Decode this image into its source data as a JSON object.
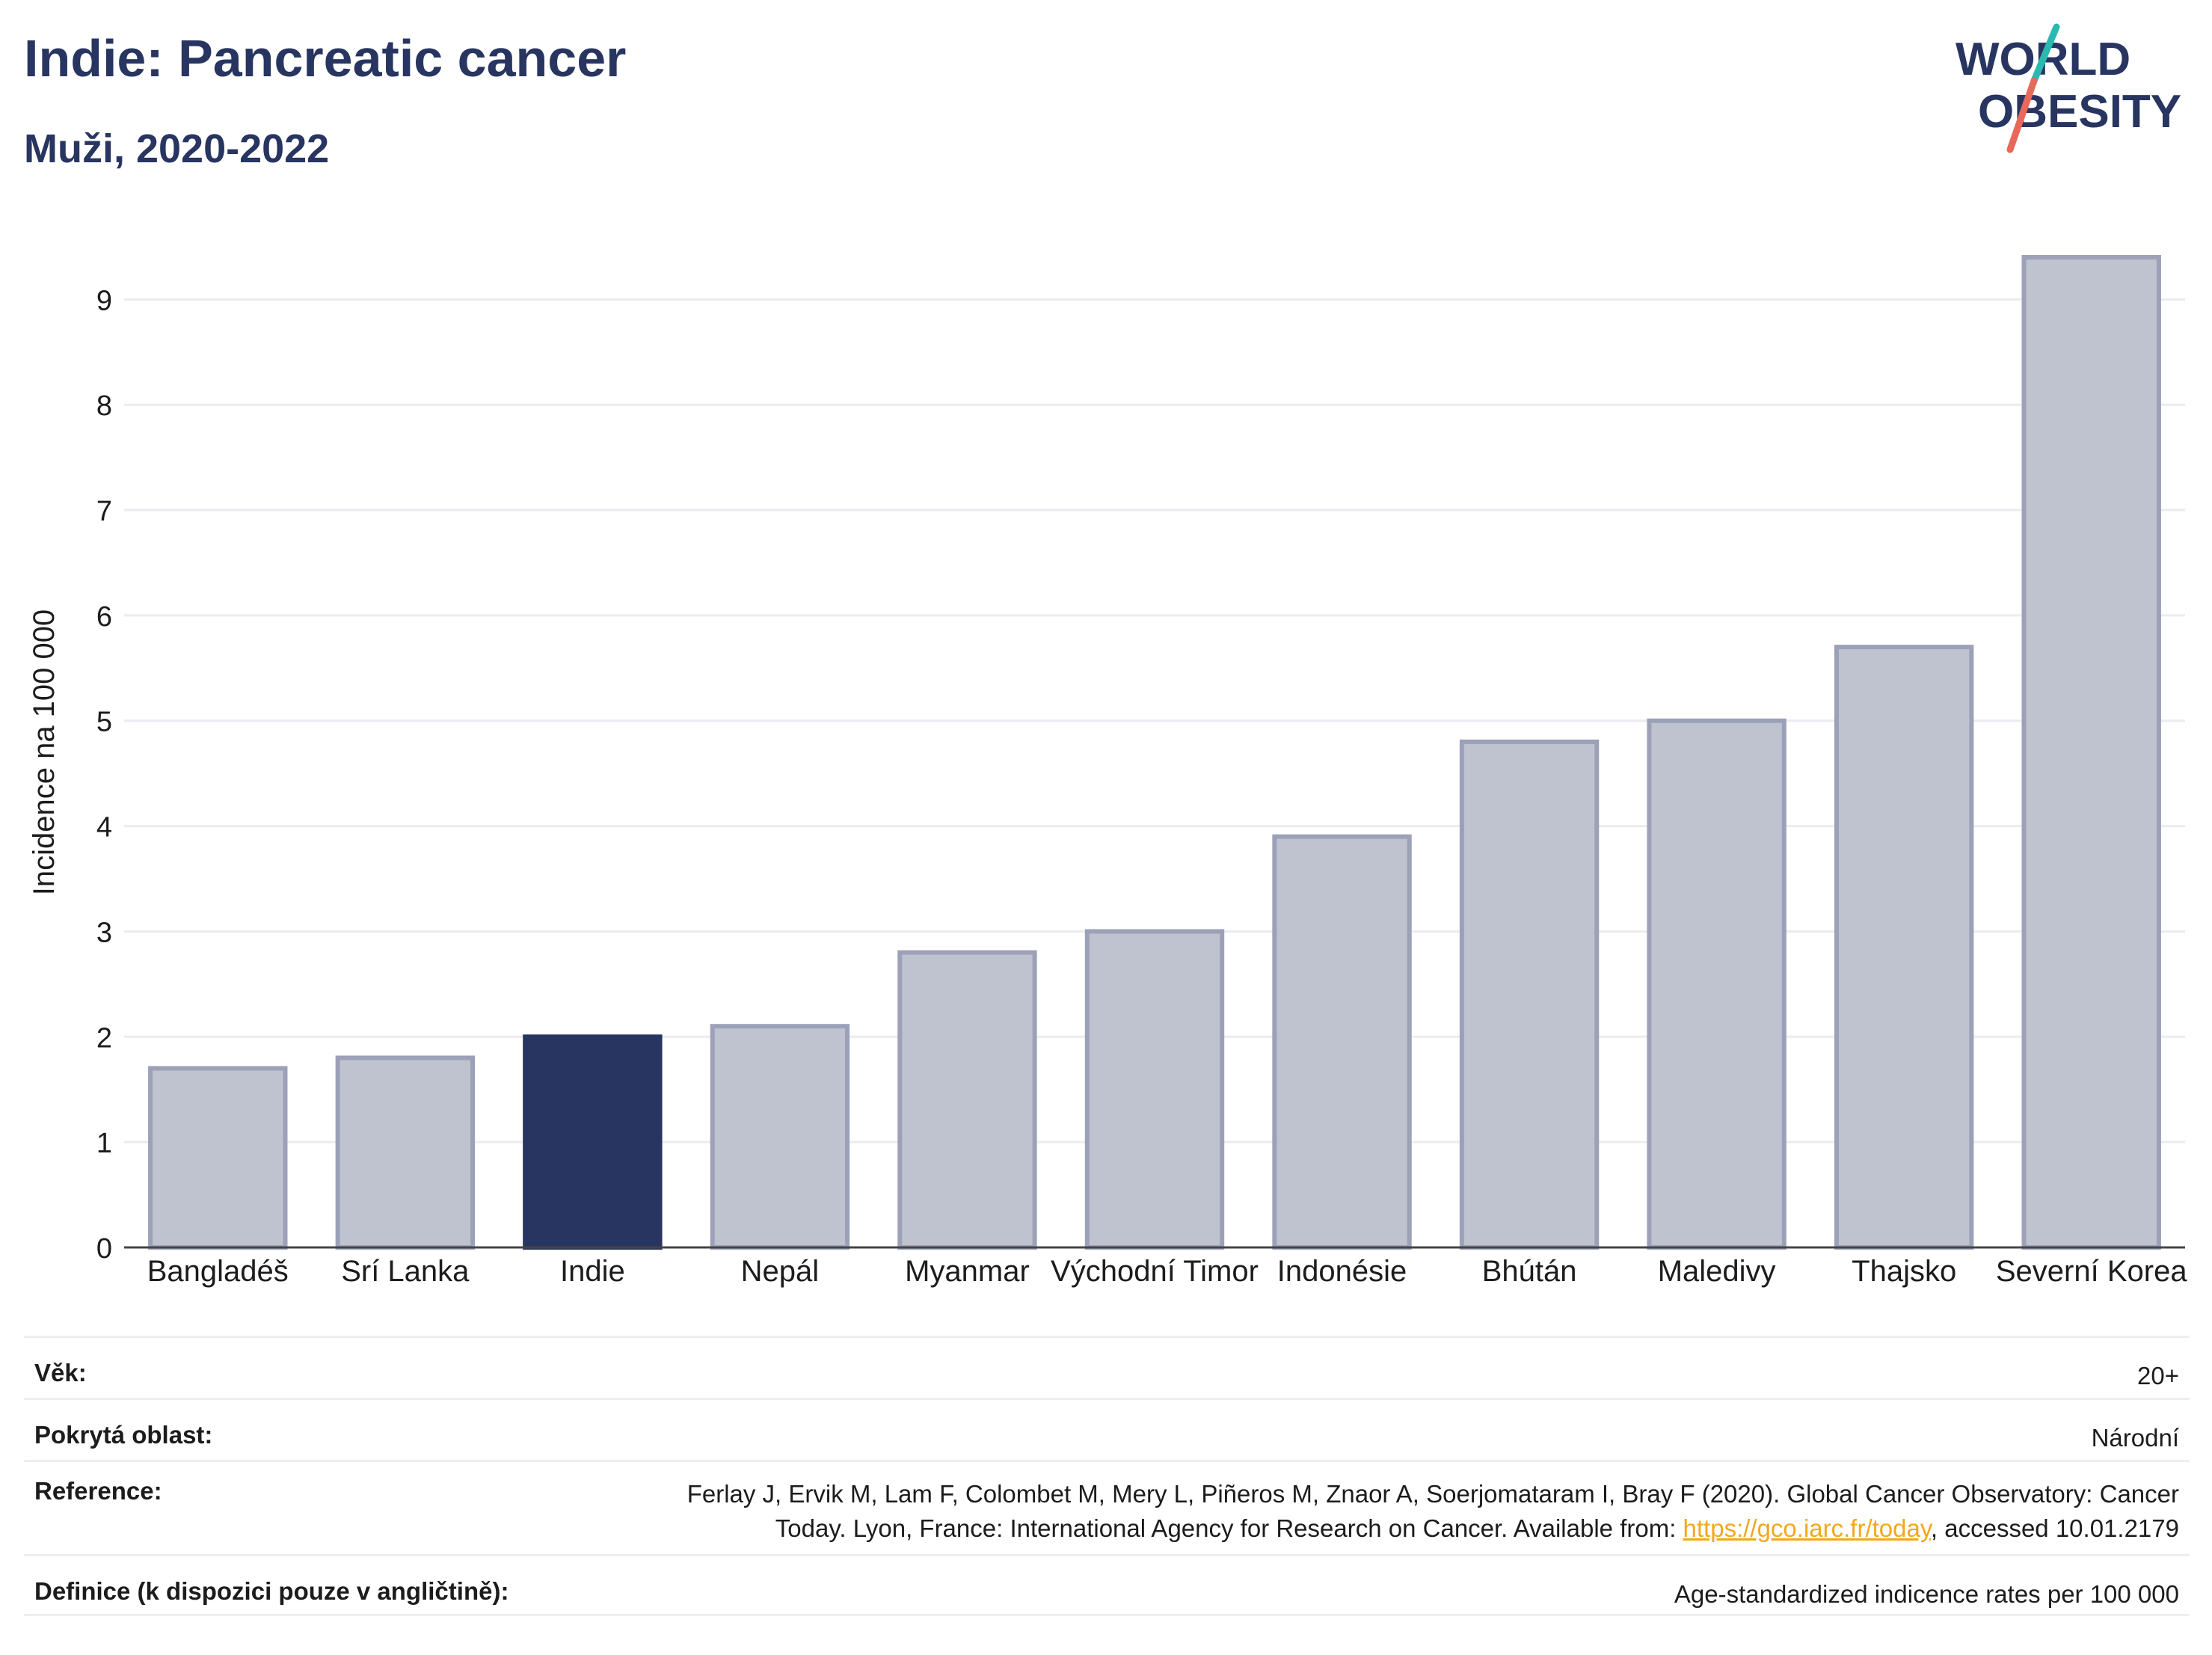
{
  "header": {
    "title": "Indie: Pancreatic cancer",
    "subtitle": "Muži, 2020-2022"
  },
  "logo": {
    "line1": "WORLD",
    "line2": "OBESITY"
  },
  "colors": {
    "highlight": "#283561",
    "bar_fill": "#bfc2cf",
    "bar_stroke": "#9ca1b8",
    "grid": "#ebebf0",
    "logo_teal": "#2bb8b0",
    "logo_coral": "#e8685a"
  },
  "chart_data": {
    "type": "bar",
    "title": "Indie: Pancreatic cancer",
    "subtitle": "Muži, 2020-2022",
    "ylabel": "Incidence na 100 000",
    "xlabel": "",
    "categories": [
      "Bangladéš",
      "Srí Lanka",
      "Indie",
      "Nepál",
      "Myanmar",
      "Východní Timor",
      "Indonésie",
      "Bhútán",
      "Maledivy",
      "Thajsko",
      "Severní Korea"
    ],
    "values": [
      1.7,
      1.8,
      2.0,
      2.1,
      2.8,
      3.0,
      3.9,
      4.8,
      5.0,
      5.7,
      9.4
    ],
    "highlight": "Indie",
    "ylim": [
      0,
      9.4
    ],
    "yticks": [
      0,
      1,
      2,
      3,
      4,
      5,
      6,
      7,
      8,
      9
    ],
    "grid": true
  },
  "meta": [
    {
      "label": "Věk:",
      "value": "20+"
    },
    {
      "label": "Pokrytá oblast:",
      "value": "Národní"
    },
    {
      "label": "Reference:",
      "value_line1": "Ferlay J, Ervik M, Lam F, Colombet M, Mery L, Piñeros M, Znaor A, Soerjomataram I, Bray F (2020). Global Cancer Observatory: Cancer",
      "value_line2_pre": "Today. Lyon, France: International Agency for Research on Cancer. Available from: ",
      "link": "https://gco.iarc.fr/today",
      "value_line2_post": ", accessed 10.01.2179"
    },
    {
      "label": "Definice (k dispozici pouze v angličtině):",
      "value": "Age-standardized indicence rates per 100 000"
    }
  ]
}
